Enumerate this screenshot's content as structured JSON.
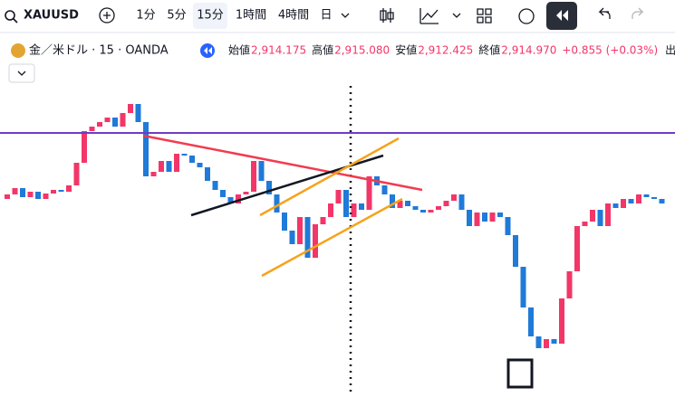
{
  "toolbar": {
    "symbol": "XAUUSD",
    "intervals": [
      "1分",
      "5分",
      "15分",
      "1時間",
      "4時間",
      "日"
    ]
  },
  "legend": {
    "name": "金／米ドル · 15 · OANDA",
    "ohlc": [
      {
        "label": "始値",
        "value": "2,914.175"
      },
      {
        "label": "高値",
        "value": "2,915.080"
      },
      {
        "label": "安値",
        "value": "2,912.425"
      },
      {
        "label": "終値",
        "value": "2,914.970"
      }
    ],
    "change": "+0.855 (+0.03%)",
    "volume": "出来高"
  },
  "chart_data": {
    "type": "candlestick",
    "ylim": [
      2895,
      2929.5
    ],
    "up_color": "#f23668",
    "down_color": "#1f7ad8",
    "open": [
      2916.5,
      2917.0,
      2917.7,
      2916.7,
      2917.3,
      2916.5,
      2917.1,
      2917.5,
      2917.3,
      2918.0,
      2920.5,
      2924.0,
      2924.5,
      2925.0,
      2925.5,
      2924.5,
      2926.0,
      2927.0,
      2925.0,
      2919.0,
      2919.5,
      2920.7,
      2919.5,
      2921.5,
      2921.3,
      2920.5,
      2920.0,
      2918.5,
      2917.5,
      2916.7,
      2916.0,
      2917.0,
      2917.3,
      2920.7,
      2918.5,
      2917.0,
      2915.0,
      2913.0,
      2911.5,
      2914.5,
      2910.0,
      2913.7,
      2914.5,
      2916.0,
      2917.5,
      2914.5,
      2916.0,
      2915.3,
      2919.0,
      2918.0,
      2917.0,
      2915.5,
      2916.3,
      2915.7,
      2915.3,
      2915.0,
      2915.3,
      2915.7,
      2916.3,
      2917.0,
      2915.3,
      2913.5,
      2915.0,
      2914.0,
      2915.0,
      2914.5,
      2912.5,
      2909.0,
      2904.5,
      2901.3,
      2900.0,
      2901.0,
      2900.5,
      2905.5,
      2908.5,
      2913.5,
      2914.0,
      2915.3,
      2913.5,
      2916.0,
      2915.5,
      2916.5,
      2916.0,
      2917.0,
      2916.7,
      2916.5
    ],
    "close": [
      2917.0,
      2917.7,
      2916.7,
      2917.3,
      2916.5,
      2917.1,
      2917.5,
      2917.3,
      2918.0,
      2920.5,
      2924.0,
      2924.5,
      2925.0,
      2925.5,
      2924.5,
      2926.0,
      2927.0,
      2925.0,
      2919.0,
      2919.5,
      2920.7,
      2919.5,
      2921.5,
      2921.3,
      2920.5,
      2920.0,
      2918.5,
      2917.5,
      2916.7,
      2916.0,
      2917.0,
      2917.3,
      2920.7,
      2918.5,
      2917.0,
      2915.0,
      2913.0,
      2911.5,
      2914.5,
      2910.0,
      2913.7,
      2914.5,
      2916.0,
      2917.5,
      2914.5,
      2916.0,
      2915.3,
      2919.0,
      2918.0,
      2917.0,
      2915.5,
      2916.3,
      2915.7,
      2915.3,
      2915.0,
      2915.3,
      2915.7,
      2916.3,
      2917.0,
      2915.3,
      2913.5,
      2915.0,
      2914.0,
      2915.0,
      2914.5,
      2912.5,
      2909.0,
      2904.5,
      2901.3,
      2900.0,
      2901.0,
      2900.5,
      2905.5,
      2908.5,
      2913.5,
      2914.0,
      2915.3,
      2913.5,
      2916.0,
      2915.5,
      2916.5,
      2916.0,
      2917.0,
      2916.7,
      2916.5,
      2916.0
    ]
  }
}
